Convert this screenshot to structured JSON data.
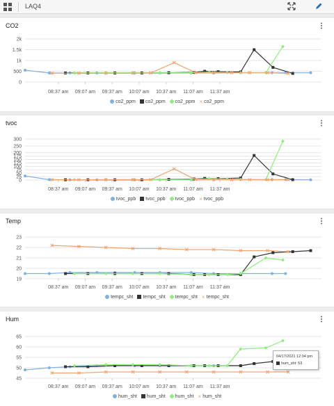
{
  "header": {
    "title": "LAQ4"
  },
  "x_ticks": [
    "08:37 am",
    "09:07 am",
    "09:37 am",
    "10:07 am",
    "10:37 am",
    "11:07 am",
    "11:37 am"
  ],
  "colors": {
    "blue": "#7fb0e0",
    "dark": "#333333",
    "green": "#90ed7d",
    "orange": "#f0a470"
  },
  "tooltip": {
    "date": "04/17/2021 12:04 pm",
    "value": "hum_sht: 53"
  },
  "chart_data": [
    {
      "type": "line",
      "title": "CO2",
      "x_minutes_after_8am": true,
      "yticks": [
        "0",
        "500",
        "1k",
        "1.5k",
        "2k"
      ],
      "ylim": [
        0,
        2000
      ],
      "legend": [
        "co2_ppm",
        "co2_ppm",
        "co2_ppm",
        "co2_ppm"
      ],
      "series": [
        {
          "name": "co2_ppm",
          "color": "blue",
          "marker": "circle",
          "points": [
            [
              0,
              550
            ],
            [
              27,
              420
            ],
            [
              50,
              420
            ],
            [
              80,
              420
            ],
            [
              100,
              420
            ],
            [
              122,
              420
            ],
            [
              150,
              420
            ],
            [
              185,
              420
            ],
            [
              210,
              420
            ],
            [
              240,
              430
            ],
            [
              275,
              430
            ],
            [
              290,
              430
            ],
            [
              318,
              430
            ]
          ]
        },
        {
          "name": "co2_ppm",
          "color": "dark",
          "marker": "square",
          "points": [
            [
              45,
              420
            ],
            [
              70,
              420
            ],
            [
              100,
              420
            ],
            [
              130,
              420
            ],
            [
              160,
              430
            ],
            [
              188,
              450
            ],
            [
              200,
              500
            ],
            [
              215,
              480
            ],
            [
              240,
              470
            ],
            [
              255,
              1500
            ],
            [
              276,
              680
            ],
            [
              298,
              400
            ]
          ]
        },
        {
          "name": "co2_ppm",
          "color": "green",
          "marker": "diamond",
          "points": [
            [
              55,
              420
            ],
            [
              90,
              430
            ],
            [
              120,
              430
            ],
            [
              150,
              430
            ],
            [
              185,
              430
            ],
            [
              205,
              460
            ],
            [
              225,
              440
            ],
            [
              240,
              430
            ],
            [
              268,
              430
            ],
            [
              287,
              1650
            ]
          ]
        },
        {
          "name": "co2_ppm",
          "color": "orange",
          "marker": "cross",
          "points": [
            [
              30,
              410
            ],
            [
              60,
              410
            ],
            [
              90,
              410
            ],
            [
              120,
              410
            ],
            [
              140,
              420
            ],
            [
              166,
              900
            ],
            [
              190,
              430
            ],
            [
              210,
              430
            ],
            [
              230,
              430
            ],
            [
              250,
              430
            ],
            [
              270,
              430
            ],
            [
              293,
              400
            ]
          ]
        }
      ]
    },
    {
      "type": "line",
      "title": "tvoc",
      "yticks": [
        "0",
        "25",
        "50",
        "75",
        "100",
        "125",
        "150",
        "175",
        "200",
        "250",
        "300"
      ],
      "ylim": [
        0,
        300
      ],
      "legend": [
        "tvoc_ppb",
        "tvoc_ppb",
        "tvoc_ppb",
        "tvoc_ppb"
      ],
      "series": [
        {
          "name": "tvoc_ppb",
          "color": "blue",
          "marker": "circle",
          "points": [
            [
              0,
              30
            ],
            [
              27,
              3
            ],
            [
              50,
              2
            ],
            [
              80,
              2
            ],
            [
              100,
              2
            ],
            [
              122,
              2
            ],
            [
              150,
              2
            ],
            [
              185,
              2
            ],
            [
              210,
              3
            ],
            [
              240,
              3
            ],
            [
              275,
              3
            ],
            [
              290,
              3
            ],
            [
              318,
              2
            ]
          ]
        },
        {
          "name": "tvoc_ppb",
          "color": "dark",
          "marker": "square",
          "points": [
            [
              45,
              2
            ],
            [
              70,
              2
            ],
            [
              100,
              2
            ],
            [
              130,
              2
            ],
            [
              160,
              5
            ],
            [
              188,
              8
            ],
            [
              200,
              12
            ],
            [
              215,
              10
            ],
            [
              240,
              15
            ],
            [
              255,
              180
            ],
            [
              276,
              45
            ],
            [
              298,
              3
            ]
          ]
        },
        {
          "name": "tvoc_ppb",
          "color": "green",
          "marker": "diamond",
          "points": [
            [
              55,
              2
            ],
            [
              90,
              3
            ],
            [
              120,
              3
            ],
            [
              150,
              3
            ],
            [
              185,
              5
            ],
            [
              205,
              10
            ],
            [
              225,
              8
            ],
            [
              240,
              5
            ],
            [
              268,
              3
            ],
            [
              287,
              285
            ]
          ]
        },
        {
          "name": "tvoc_ppb",
          "color": "orange",
          "marker": "cross",
          "points": [
            [
              30,
              2
            ],
            [
              60,
              2
            ],
            [
              90,
              2
            ],
            [
              120,
              2
            ],
            [
              140,
              3
            ],
            [
              166,
              82
            ],
            [
              190,
              3
            ],
            [
              210,
              3
            ],
            [
              230,
              2
            ],
            [
              250,
              2
            ],
            [
              270,
              2
            ],
            [
              293,
              2
            ]
          ]
        }
      ]
    },
    {
      "type": "line",
      "title": "Temp",
      "yticks": [
        "19",
        "20",
        "21",
        "22",
        "23"
      ],
      "ylim": [
        19,
        23
      ],
      "legend": [
        "tempc_sht",
        "tempc_sht",
        "tempc_sht",
        "tempc_sht"
      ],
      "series": [
        {
          "name": "tempc_sht",
          "color": "blue",
          "marker": "circle",
          "points": [
            [
              0,
              19.5
            ],
            [
              27,
              19.5
            ],
            [
              50,
              19.6
            ],
            [
              80,
              19.6
            ],
            [
              100,
              19.6
            ],
            [
              122,
              19.6
            ],
            [
              150,
              19.6
            ],
            [
              185,
              19.6
            ],
            [
              210,
              19.5
            ],
            [
              240,
              19.5
            ],
            [
              275,
              19.5
            ],
            [
              290,
              19.5
            ]
          ]
        },
        {
          "name": "tempc_sht",
          "color": "dark",
          "marker": "square",
          "points": [
            [
              45,
              19.5
            ],
            [
              70,
              19.5
            ],
            [
              100,
              19.5
            ],
            [
              130,
              19.5
            ],
            [
              160,
              19.5
            ],
            [
              188,
              19.4
            ],
            [
              200,
              19.4
            ],
            [
              215,
              19.4
            ],
            [
              240,
              19.4
            ],
            [
              255,
              21.1
            ],
            [
              276,
              21.5
            ],
            [
              298,
              21.6
            ],
            [
              318,
              21.7
            ]
          ]
        },
        {
          "name": "tempc_sht",
          "color": "green",
          "marker": "diamond",
          "points": [
            [
              55,
              19.5
            ],
            [
              90,
              19.5
            ],
            [
              120,
              19.5
            ],
            [
              150,
              19.5
            ],
            [
              185,
              19.4
            ],
            [
              205,
              19.4
            ],
            [
              225,
              19.4
            ],
            [
              240,
              19.5
            ],
            [
              268,
              21.0
            ],
            [
              287,
              20.8
            ]
          ]
        },
        {
          "name": "tempc_sht",
          "color": "orange",
          "marker": "cross",
          "points": [
            [
              30,
              22.2
            ],
            [
              60,
              22.1
            ],
            [
              90,
              22.0
            ],
            [
              120,
              21.9
            ],
            [
              150,
              21.9
            ],
            [
              180,
              21.8
            ],
            [
              210,
              21.8
            ],
            [
              240,
              21.7
            ],
            [
              270,
              21.7
            ],
            [
              293,
              21.6
            ]
          ]
        }
      ]
    },
    {
      "type": "line",
      "title": "Hum",
      "yticks": [
        "45",
        "50",
        "55",
        "60",
        "65"
      ],
      "ylim": [
        45,
        65
      ],
      "legend": [
        "hum_sht",
        "hum_sht",
        "hum_sht",
        "hum_sht"
      ],
      "series": [
        {
          "name": "hum_sht",
          "color": "blue",
          "marker": "circle",
          "points": [
            [
              0,
              49
            ],
            [
              27,
              50
            ],
            [
              50,
              50.5
            ],
            [
              80,
              51
            ],
            [
              100,
              51
            ],
            [
              122,
              51
            ],
            [
              150,
              51
            ],
            [
              185,
              51
            ],
            [
              210,
              51
            ],
            [
              240,
              51
            ],
            [
              255,
              52
            ]
          ]
        },
        {
          "name": "hum_sht",
          "color": "dark",
          "marker": "square",
          "points": [
            [
              45,
              50.5
            ],
            [
              70,
              50.5
            ],
            [
              100,
              51
            ],
            [
              130,
              51
            ],
            [
              160,
              51
            ],
            [
              188,
              51
            ],
            [
              200,
              51
            ],
            [
              215,
              51
            ],
            [
              240,
              51
            ],
            [
              255,
              52
            ],
            [
              276,
              53
            ],
            [
              298,
              53
            ],
            [
              318,
              53
            ]
          ]
        },
        {
          "name": "hum_sht",
          "color": "green",
          "marker": "diamond",
          "points": [
            [
              55,
              51
            ],
            [
              90,
              51.5
            ],
            [
              120,
              51.5
            ],
            [
              150,
              51.5
            ],
            [
              185,
              51
            ],
            [
              205,
              51
            ],
            [
              225,
              51
            ],
            [
              240,
              59
            ],
            [
              268,
              59.5
            ],
            [
              287,
              63
            ]
          ]
        },
        {
          "name": "hum_sht",
          "color": "orange",
          "marker": "cross",
          "points": [
            [
              30,
              47.5
            ],
            [
              60,
              47.5
            ],
            [
              90,
              48
            ],
            [
              120,
              48
            ],
            [
              150,
              48
            ],
            [
              180,
              48
            ],
            [
              210,
              48
            ],
            [
              240,
              48
            ],
            [
              270,
              48
            ],
            [
              293,
              48
            ]
          ]
        }
      ]
    }
  ]
}
